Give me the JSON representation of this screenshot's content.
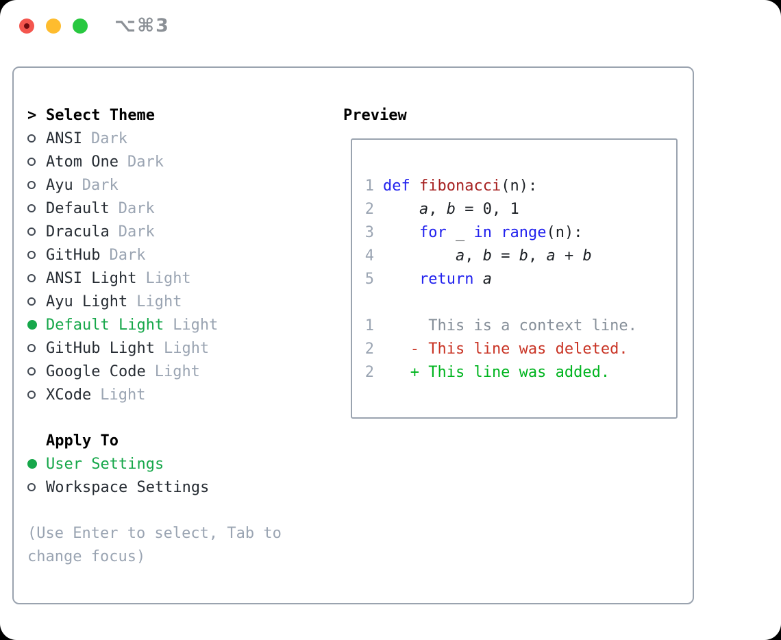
{
  "window": {
    "title": "⌥⌘3",
    "traffic_lights": [
      "close",
      "minimize",
      "zoom"
    ]
  },
  "theme_picker": {
    "cursor": ">",
    "header": "Select Theme",
    "items": [
      {
        "label": "ANSI",
        "tag": "Dark",
        "selected": false
      },
      {
        "label": "Atom One",
        "tag": "Dark",
        "selected": false
      },
      {
        "label": "Ayu",
        "tag": "Dark",
        "selected": false
      },
      {
        "label": "Default",
        "tag": "Dark",
        "selected": false
      },
      {
        "label": "Dracula",
        "tag": "Dark",
        "selected": false
      },
      {
        "label": "GitHub",
        "tag": "Dark",
        "selected": false
      },
      {
        "label": "ANSI Light",
        "tag": "Light",
        "selected": false
      },
      {
        "label": "Ayu Light",
        "tag": "Light",
        "selected": false
      },
      {
        "label": "Default Light",
        "tag": "Light",
        "selected": true
      },
      {
        "label": "GitHub Light",
        "tag": "Light",
        "selected": false
      },
      {
        "label": "Google Code",
        "tag": "Light",
        "selected": false
      },
      {
        "label": "XCode",
        "tag": "Light",
        "selected": false
      }
    ]
  },
  "apply_to": {
    "header": "Apply To",
    "options": [
      {
        "label": "User Settings",
        "selected": true
      },
      {
        "label": "Workspace Settings",
        "selected": false
      }
    ]
  },
  "hint": "(Use Enter to select, Tab to change focus)",
  "preview": {
    "title": "Preview",
    "lines": [
      {
        "num": "1",
        "tokens": [
          [
            "def",
            "kw"
          ],
          [
            " ",
            "pl"
          ],
          [
            "fibonacci",
            "fn"
          ],
          [
            "(n):",
            "pl"
          ]
        ]
      },
      {
        "num": "2",
        "tokens": [
          [
            "    ",
            "pl"
          ],
          [
            "a",
            "var"
          ],
          [
            ", ",
            "pl"
          ],
          [
            "b",
            "var"
          ],
          [
            " = 0, 1",
            "pl"
          ]
        ]
      },
      {
        "num": "3",
        "tokens": [
          [
            "    ",
            "pl"
          ],
          [
            "for",
            "kw"
          ],
          [
            " _ ",
            "pl"
          ],
          [
            "in",
            "kw"
          ],
          [
            " ",
            "pl"
          ],
          [
            "range",
            "kw"
          ],
          [
            "(n):",
            "pl"
          ]
        ]
      },
      {
        "num": "4",
        "tokens": [
          [
            "        ",
            "pl"
          ],
          [
            "a",
            "var"
          ],
          [
            ", ",
            "pl"
          ],
          [
            "b",
            "var"
          ],
          [
            " = ",
            "pl"
          ],
          [
            "b",
            "var"
          ],
          [
            ", ",
            "pl"
          ],
          [
            "a",
            "var"
          ],
          [
            " + ",
            "pl"
          ],
          [
            "b",
            "var"
          ]
        ]
      },
      {
        "num": "5",
        "tokens": [
          [
            "    ",
            "pl"
          ],
          [
            "return",
            "kw"
          ],
          [
            " ",
            "pl"
          ],
          [
            "a",
            "var"
          ]
        ]
      },
      {
        "num": "",
        "tokens": []
      },
      {
        "num": "1",
        "tokens": [
          [
            "     This is a context line.",
            "ctx"
          ]
        ]
      },
      {
        "num": "2",
        "tokens": [
          [
            "   - This line was deleted.",
            "del"
          ]
        ]
      },
      {
        "num": "2",
        "tokens": [
          [
            "   + This line was added.",
            "add"
          ]
        ]
      }
    ]
  },
  "colors": {
    "accent_green": "#16a74a",
    "diff_green": "#00b41f",
    "diff_red": "#c93425",
    "keyword_blue": "#2222ee",
    "function_red": "#a62121",
    "muted_gray": "#9aa4b2",
    "context_gray": "#868f99",
    "text_dark": "#262c33",
    "code_dark": "#1b1f24",
    "border_gray": "#9aa3af",
    "title_gray": "#8b9096"
  }
}
